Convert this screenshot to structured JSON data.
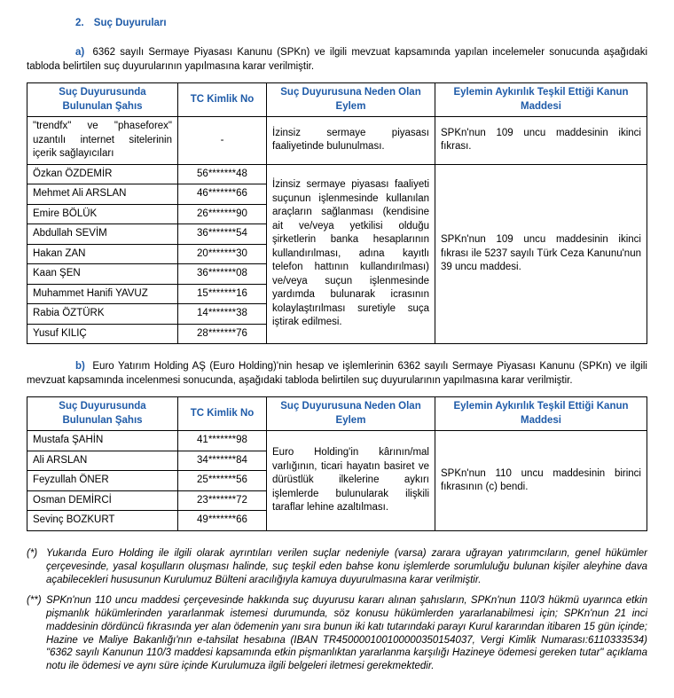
{
  "colors": {
    "heading": "#1f5ba8",
    "text": "#000000",
    "border": "#000000"
  },
  "section": {
    "number": "2.",
    "title": "Suç Duyuruları"
  },
  "table_headers": {
    "person": "Suç Duyurusunda Bulunulan Şahıs",
    "tc": "TC Kimlik No",
    "action": "Suç Duyurusuna Neden Olan Eylem",
    "law": "Eylemin Aykırılık Teşkil Ettiği Kanun Maddesi"
  },
  "partA": {
    "label": "a)",
    "intro": "6362 sayılı Sermaye Piyasası Kanunu (SPKn) ve ilgili mevzuat kapsamında yapılan incelemeler sonucunda aşağıdaki tabloda belirtilen suç duyurularının yapılmasına karar verilmiştir.",
    "row1": {
      "person": "\"trendfx\" ve \"phaseforex\" uzantılı internet sitelerinin içerik sağlayıcıları",
      "tc": "-",
      "action": "İzinsiz sermaye piyasası faaliyetinde bulunulması.",
      "law": "SPKn'nun 109 uncu maddesinin ikinci fıkrası."
    },
    "shared": {
      "action": "İzinsiz sermaye piyasası faaliyeti suçunun işlenmesinde kullanılan araçların sağlanması (kendisine ait ve/veya yetkilisi olduğu şirketlerin banka hesaplarının kullandırılması, adına kayıtlı telefon hattının kullandırılması) ve/veya suçun işlenmesinde yardımda bulunarak icrasının kolaylaştırılması suretiyle suça iştirak edilmesi.",
      "law": "SPKn'nun 109 uncu maddesinin ikinci fıkrası ile 5237 sayılı Türk Ceza Kanunu'nun 39 uncu maddesi."
    },
    "rows": [
      {
        "person": "Özkan ÖZDEMİR",
        "tc": "56*******48"
      },
      {
        "person": "Mehmet Ali ARSLAN",
        "tc": "46*******66"
      },
      {
        "person": "Emire BÖLÜK",
        "tc": "26*******90"
      },
      {
        "person": "Abdullah SEVİM",
        "tc": "36*******54"
      },
      {
        "person": "Hakan ZAN",
        "tc": "20*******30"
      },
      {
        "person": "Kaan ŞEN",
        "tc": "36*******08"
      },
      {
        "person": "Muhammet Hanifi YAVUZ",
        "tc": "15*******16"
      },
      {
        "person": "Rabia ÖZTÜRK",
        "tc": "14*******38"
      },
      {
        "person": "Yusuf KILIÇ",
        "tc": "28*******76"
      }
    ]
  },
  "partB": {
    "label": "b)",
    "intro": "Euro Yatırım Holding AŞ (Euro Holding)'nin hesap ve işlemlerinin 6362 sayılı Sermaye Piyasası Kanunu (SPKn) ve ilgili mevzuat kapsamında incelenmesi sonucunda, aşağıdaki tabloda belirtilen suç duyurularının yapılmasına karar verilmiştir.",
    "shared": {
      "action": "Euro Holding'in kârının/mal varlığının, ticari hayatın basiret ve dürüstlük ilkelerine aykırı işlemlerde bulunularak ilişkili taraflar lehine azaltılması.",
      "law": "SPKn'nun 110 uncu maddesinin birinci fıkrasının (c) bendi."
    },
    "rows": [
      {
        "person": "Mustafa ŞAHİN",
        "tc": "41*******98"
      },
      {
        "person": "Ali ARSLAN",
        "tc": "34*******84"
      },
      {
        "person": "Feyzullah ÖNER",
        "tc": "25*******56"
      },
      {
        "person": "Osman DEMİRCİ",
        "tc": "23*******72"
      },
      {
        "person": "Sevinç BOZKURT",
        "tc": "49*******66"
      }
    ]
  },
  "footnotes": [
    {
      "mark": "(*)",
      "text": "Yukarıda Euro Holding ile ilgili olarak ayrıntıları verilen suçlar nedeniyle (varsa) zarara uğrayan yatırımcıların, genel hükümler çerçevesinde, yasal koşulların oluşması halinde, suç teşkil eden bahse konu işlemlerde sorumluluğu bulunan kişiler aleyhine dava açabilecekleri hususunun Kurulumuz Bülteni aracılığıyla kamuya duyurulmasına karar verilmiştir."
    },
    {
      "mark": "(**)",
      "text": "SPKn'nun 110 uncu maddesi çerçevesinde hakkında suç duyurusu kararı alınan şahısların, SPKn'nun 110/3 hükmü uyarınca etkin pişmanlık hükümlerinden yararlanmak istemesi durumunda, söz konusu hükümlerden yararlanabilmesi için; SPKn'nun 21 inci maddesinin dördüncü fıkrasında yer alan ödemenin yanı sıra bunun iki katı tutarındaki parayı Kurul kararından itibaren 15 gün içinde; Hazine ve Maliye Bakanlığı'nın e-tahsilat hesabına (IBAN TR450000100100000350154037, Vergi Kimlik Numarası:6110333534) \"6362 sayılı Kanunun 110/3 maddesi kapsamında etkin pişmanlıktan yararlanma karşılığı Hazineye ödemesi gereken tutar\" açıklama notu ile ödemesi ve aynı süre içinde Kurulumuza ilgili belgeleri iletmesi gerekmektedir."
    }
  ]
}
